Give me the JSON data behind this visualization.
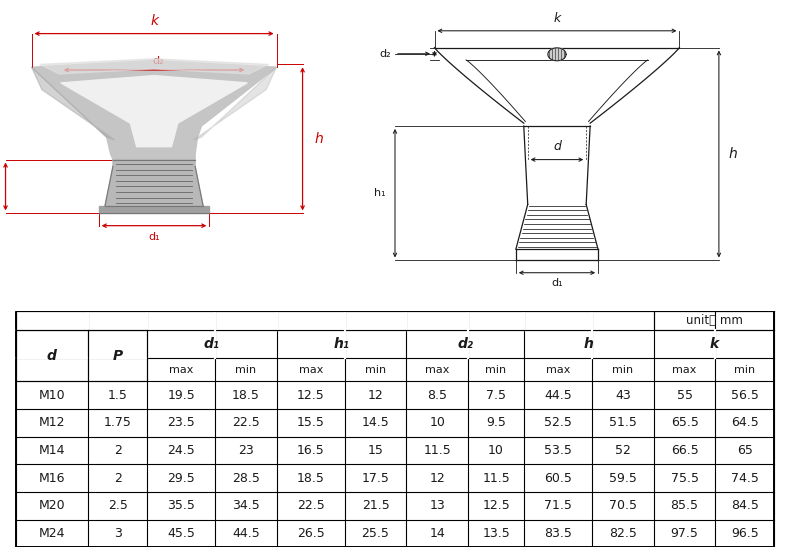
{
  "bg_color": "#ffffff",
  "table_border_color": "#000000",
  "unit_text": "unit： mm",
  "rows": [
    [
      "M10",
      "1.5",
      "19.5",
      "18.5",
      "12.5",
      "12",
      "8.5",
      "7.5",
      "44.5",
      "43",
      "55",
      "56.5"
    ],
    [
      "M12",
      "1.75",
      "23.5",
      "22.5",
      "15.5",
      "14.5",
      "10",
      "9.5",
      "52.5",
      "51.5",
      "65.5",
      "64.5"
    ],
    [
      "M14",
      "2",
      "24.5",
      "23",
      "16.5",
      "15",
      "11.5",
      "10",
      "53.5",
      "52",
      "66.5",
      "65"
    ],
    [
      "M16",
      "2",
      "29.5",
      "28.5",
      "18.5",
      "17.5",
      "12",
      "11.5",
      "60.5",
      "59.5",
      "75.5",
      "74.5"
    ],
    [
      "M20",
      "2.5",
      "35.5",
      "34.5",
      "22.5",
      "21.5",
      "13",
      "12.5",
      "71.5",
      "70.5",
      "85.5",
      "84.5"
    ],
    [
      "M24",
      "3",
      "45.5",
      "44.5",
      "26.5",
      "25.5",
      "14",
      "13.5",
      "83.5",
      "82.5",
      "97.5",
      "96.5"
    ]
  ],
  "red_color": "#cc0000",
  "black_color": "#1a1a1a",
  "gray_light": "#d0d0d0",
  "gray_mid": "#b0b0b0",
  "gray_dark": "#888888",
  "font_size_table": 9,
  "font_size_header": 10
}
